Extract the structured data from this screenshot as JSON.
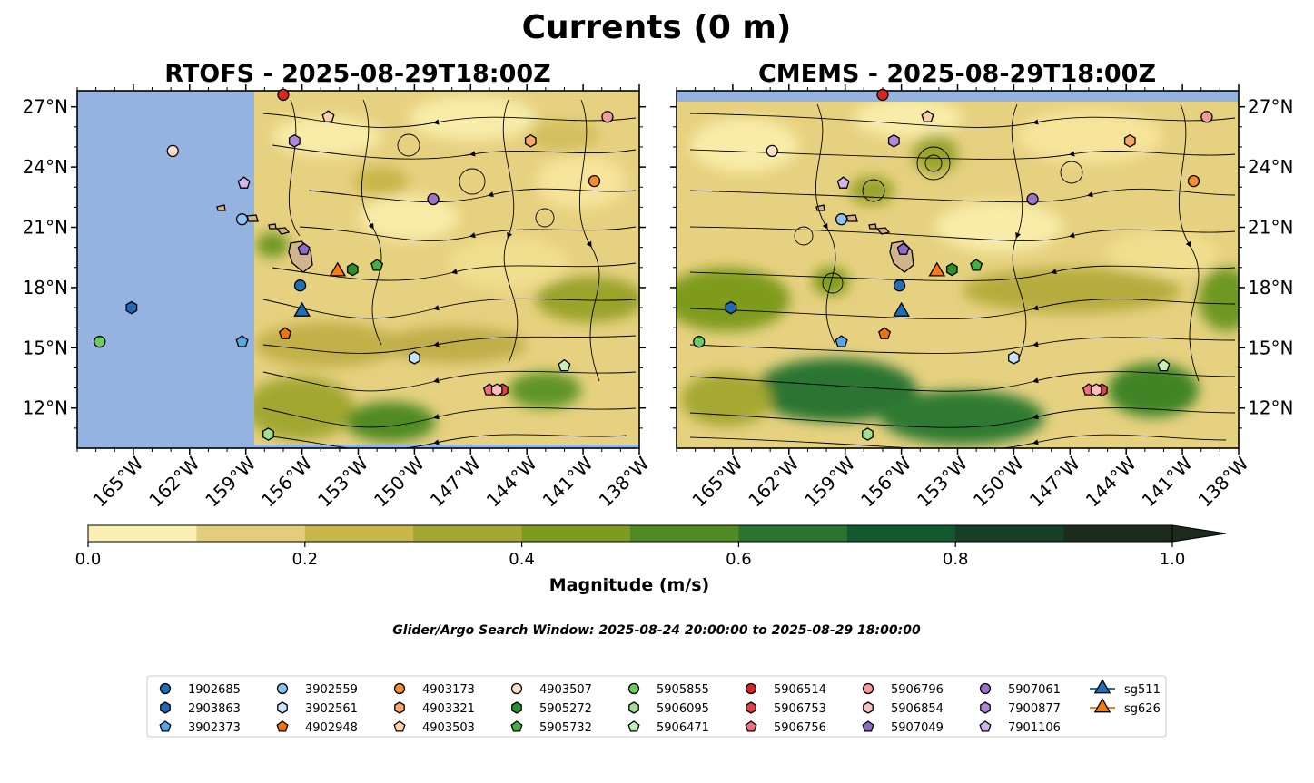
{
  "figure": {
    "title": "Currents (0 m)",
    "window_text": "Glider/Argo Search Window: 2025-08-24 20:00:00 to 2025-08-29 18:00:00"
  },
  "chart_data": {
    "type": "map",
    "panels": [
      {
        "title": "RTOFS - 2025-08-29T18:00Z",
        "model": "RTOFS"
      },
      {
        "title": "CMEMS - 2025-08-29T18:00Z",
        "model": "CMEMS"
      }
    ],
    "x_range_deg": [
      -168,
      -138
    ],
    "y_range_deg": [
      10,
      27.8
    ],
    "x_ticks": [
      -165,
      -162,
      -159,
      -156,
      -153,
      -150,
      -147,
      -144,
      -141,
      -138
    ],
    "x_tick_labels": [
      "165°W",
      "162°W",
      "159°W",
      "156°W",
      "153°W",
      "150°W",
      "147°W",
      "144°W",
      "141°W",
      "138°W"
    ],
    "y_ticks": [
      27,
      24,
      21,
      18,
      15,
      12
    ],
    "y_tick_labels": [
      "27°N",
      "24°N",
      "21°N",
      "18°N",
      "15°N",
      "12°N"
    ],
    "colorbar": {
      "label": "Magnitude (m/s)",
      "min": 0.0,
      "max": 1.0,
      "step": 0.1,
      "extend": "max",
      "tick_values": [
        0.0,
        0.2,
        0.4,
        0.6,
        0.8,
        1.0
      ],
      "tick_labels": [
        "0.0",
        "0.2",
        "0.4",
        "0.6",
        "0.8",
        "1.0"
      ],
      "colors": [
        "#fbf0b4",
        "#e2cd7b",
        "#c8b64a",
        "#a5a830",
        "#7f9b1f",
        "#4f8a22",
        "#2b7430",
        "#13592f",
        "#173e26",
        "#1d2a1e"
      ]
    },
    "land_color": "#d2b48c",
    "nodata_color": "#95b3e0",
    "platforms": [
      {
        "id": "1902685",
        "marker": "circle",
        "color": "#1f6fb4",
        "lon": -156.1,
        "lat": 18.1
      },
      {
        "id": "2903863",
        "marker": "hexagon",
        "color": "#2467b3",
        "lon": -165.1,
        "lat": 17.0
      },
      {
        "id": "3902373",
        "marker": "pentagon",
        "color": "#58a6e3",
        "lon": -159.2,
        "lat": 15.3
      },
      {
        "id": "3902559",
        "marker": "circle",
        "color": "#8dc4ef",
        "lon": -159.2,
        "lat": 21.4
      },
      {
        "id": "3902561",
        "marker": "hexagon",
        "color": "#c6e4fb",
        "lon": -150.0,
        "lat": 14.5
      },
      {
        "id": "4902948",
        "marker": "pentagon",
        "color": "#ee7412",
        "lon": -156.9,
        "lat": 15.7
      },
      {
        "id": "4903173",
        "marker": "circle",
        "color": "#f28c30",
        "lon": -140.4,
        "lat": 23.3
      },
      {
        "id": "4903321",
        "marker": "hexagon",
        "color": "#f7a868",
        "lon": -143.8,
        "lat": 25.3
      },
      {
        "id": "4903503",
        "marker": "pentagon",
        "color": "#fcd0a8",
        "lon": -154.6,
        "lat": 26.5
      },
      {
        "id": "4903507",
        "marker": "circle",
        "color": "#fde0c6",
        "lon": -162.9,
        "lat": 24.8
      },
      {
        "id": "5905272",
        "marker": "hexagon",
        "color": "#2d8f2a",
        "lon": -153.3,
        "lat": 18.9
      },
      {
        "id": "5905732",
        "marker": "pentagon",
        "color": "#46ae44",
        "lon": -152.0,
        "lat": 19.1
      },
      {
        "id": "5905855",
        "marker": "circle",
        "color": "#6ccb62",
        "lon": -166.8,
        "lat": 15.3
      },
      {
        "id": "5906095",
        "marker": "hexagon",
        "color": "#a3df93",
        "lon": -157.8,
        "lat": 10.7
      },
      {
        "id": "5906471",
        "marker": "pentagon",
        "color": "#c6f0bb",
        "lon": -142.0,
        "lat": 14.1
      },
      {
        "id": "5906514",
        "marker": "circle",
        "color": "#d62525",
        "lon": -157.0,
        "lat": 27.6
      },
      {
        "id": "5906753",
        "marker": "hexagon",
        "color": "#e0424a",
        "lon": -145.3,
        "lat": 12.9
      },
      {
        "id": "5906756",
        "marker": "pentagon",
        "color": "#ef6f80",
        "lon": -146.0,
        "lat": 12.9
      },
      {
        "id": "5906796",
        "marker": "circle",
        "color": "#f59a9a",
        "lon": -139.7,
        "lat": 26.5
      },
      {
        "id": "5906854",
        "marker": "hexagon",
        "color": "#f9c0c0",
        "lon": -145.6,
        "lat": 12.9
      },
      {
        "id": "5907049",
        "marker": "pentagon",
        "color": "#8d6cc8",
        "lon": -155.9,
        "lat": 19.9
      },
      {
        "id": "5907061",
        "marker": "circle",
        "color": "#9c72c6",
        "lon": -149.0,
        "lat": 22.4
      },
      {
        "id": "7900877",
        "marker": "hexagon",
        "color": "#b188d8",
        "lon": -156.4,
        "lat": 25.3
      },
      {
        "id": "7901106",
        "marker": "pentagon",
        "color": "#d2b4ee",
        "lon": -159.1,
        "lat": 23.2
      },
      {
        "id": "sg511",
        "marker": "triangle",
        "color": "#1f6fb4",
        "lon": -156.0,
        "lat": 16.8
      },
      {
        "id": "sg626",
        "marker": "triangle",
        "color": "#f57b12",
        "lon": -154.1,
        "lat": 18.8
      }
    ]
  }
}
